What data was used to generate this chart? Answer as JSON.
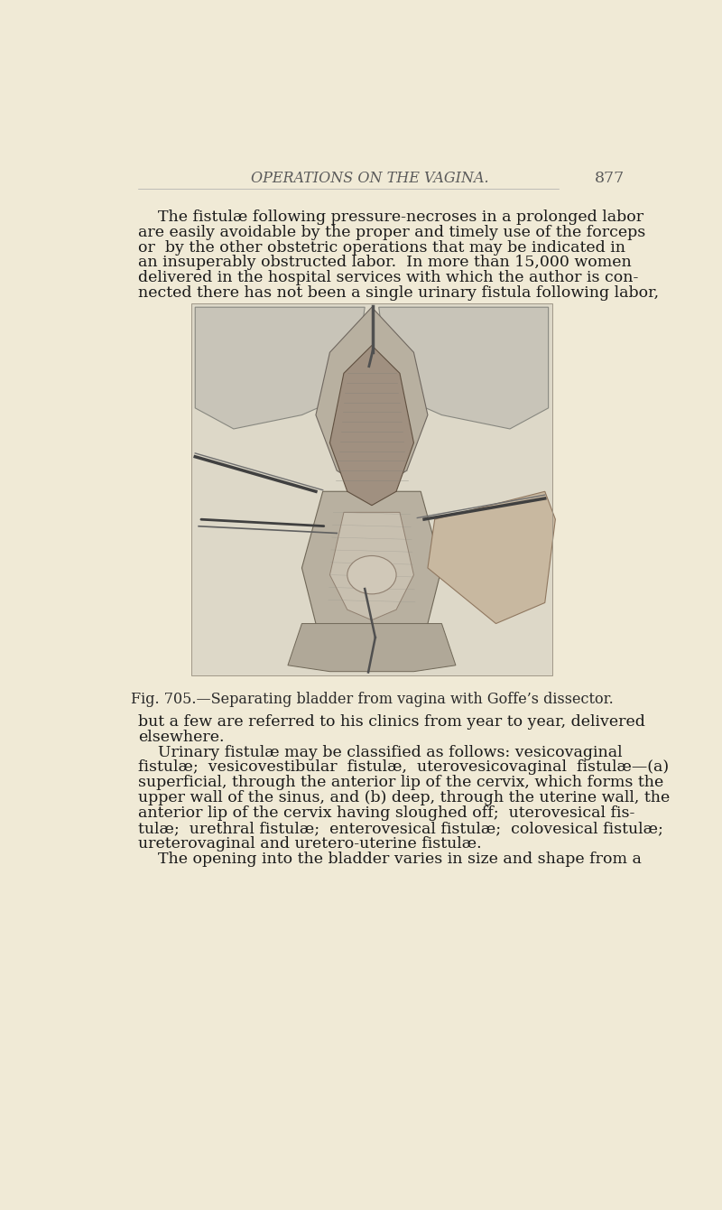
{
  "background_color": "#f0ead6",
  "page_number": "877",
  "header_title": "OPERATIONS ON THE VAGINA.",
  "header_font_size": 11.5,
  "header_color": "#5a5a5a",
  "body_font_size": 12.5,
  "body_color": "#1a1a1a",
  "caption_font_size": 11.5,
  "caption_color": "#2a2a2a",
  "para1_lines": [
    "    The fistulæ following pressure-necroses in a prolonged labor",
    "are easily avoidable by the proper and timely use of the forceps",
    "or  by the other obstetric operations that may be indicated in",
    "an insuperably obstructed labor.  In more than 15,000 women",
    "delivered in the hospital services with which the author is con-",
    "nected there has not been a single urinary fistula following labor,"
  ],
  "caption_text": "Fig. 705.—Separating bladder from vagina with Goffe’s dissector.",
  "para2_lines": [
    "but a few are referred to his clinics from year to year, delivered",
    "elsewhere.",
    "    Urinary fistulæ may be classified as follows: vesicovaginal",
    "fistulæ;  vesicovestibular  fistulæ,  uterovesicovaginal  fistulæ—(a)",
    "superficial, through the anterior lip of the cervix, which forms the",
    "upper wall of the sinus, and (b) deep, through the uterine wall, the",
    "anterior lip of the cervix having sloughed off;  uterovesical fis-",
    "tulæ;  urethral fistulæ;  enterovesical fistulæ;  colovesical fistulæ;",
    "ureterovaginal and uretero-uterine fistulæ.",
    "    The opening into the bladder varies in size and shape from a"
  ]
}
